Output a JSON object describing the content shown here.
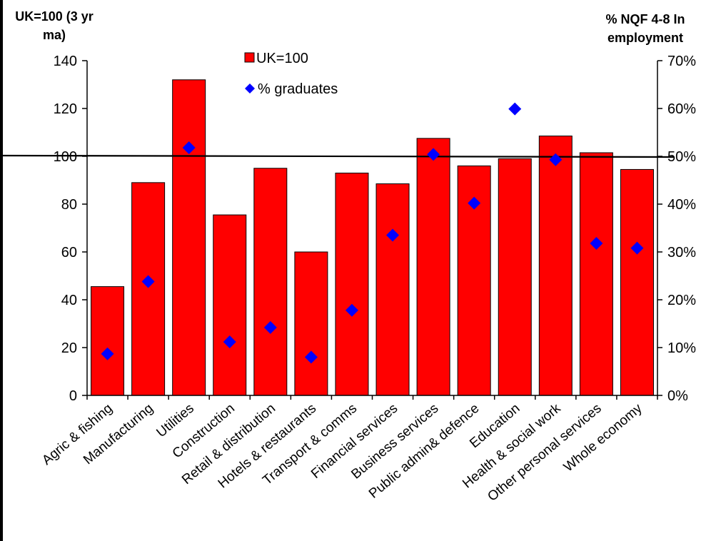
{
  "chart_data": {
    "type": "bar",
    "categories": [
      "Agric & fishing",
      "Manufacturing",
      "Utilities",
      "Construction",
      "Retail & distribution",
      "Hotels & restaurants",
      "Transport & comms",
      "Financial services",
      "Business services",
      "Public admin& defence",
      "Education",
      "Health & social work",
      "Other personal services",
      "Whole economy"
    ],
    "series": [
      {
        "name": "UK=100",
        "type": "bar",
        "axis": "left",
        "color": "#ff0000",
        "values": [
          45.5,
          89,
          132,
          75.5,
          95,
          60,
          93,
          88.5,
          107.5,
          96,
          99,
          108.5,
          101.5,
          94.5
        ]
      },
      {
        "name": "% graduates",
        "type": "scatter",
        "axis": "right",
        "color": "#0000ff",
        "values": [
          8.7,
          23.8,
          51.8,
          11.2,
          14.2,
          8.0,
          17.8,
          33.5,
          50.4,
          40.2,
          59.9,
          49.3,
          31.8,
          30.8
        ]
      }
    ],
    "reference_line": {
      "axis": "left",
      "value": 100
    },
    "ylabel": "UK=100 (3 yr ma)",
    "ylabel_right": "% NQF 4-8 In employment",
    "ylim": [
      0,
      140
    ],
    "yticks": [
      0,
      20,
      40,
      60,
      80,
      100,
      120,
      140
    ],
    "ylim_right": [
      0,
      70
    ],
    "yticks_right": [
      "0%",
      "10%",
      "20%",
      "30%",
      "40%",
      "50%",
      "60%",
      "70%"
    ],
    "legend_position": "top-center",
    "grid": false
  }
}
